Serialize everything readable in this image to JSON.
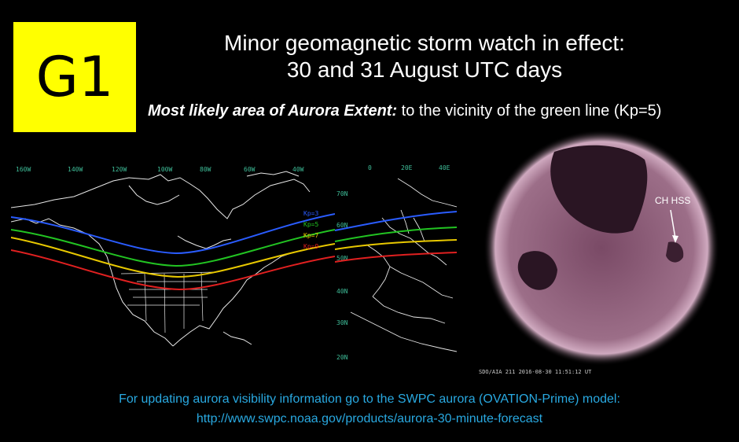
{
  "badge": {
    "label": "G1"
  },
  "title": {
    "line1": "Minor geomagnetic storm watch in effect:",
    "line2": "30 and 31 August UTC days"
  },
  "subtitle": {
    "bold": "Most likely area of Aurora Extent:",
    "rest": " to the vicinity of the green line (Kp=5)"
  },
  "map": {
    "longitude_ticks": [
      "160W",
      "140W",
      "120W",
      "100W",
      "80W",
      "60W",
      "40W"
    ],
    "europe_longitude_ticks": [
      "0",
      "20E",
      "40E"
    ],
    "latitude_ticks": [
      "70N",
      "60N",
      "50N",
      "40N",
      "30N",
      "20N"
    ],
    "lines": [
      {
        "label": "Kp=3",
        "color": "#2a5cff"
      },
      {
        "label": "Kp=5",
        "color": "#22c422"
      },
      {
        "label": "Kp=7",
        "color": "#e8c800"
      },
      {
        "label": "Kp=9",
        "color": "#e02020"
      }
    ]
  },
  "sun": {
    "annotation": "CH HSS",
    "caption": "SDO/AIA  211    2016-08-30 11:51:12 UT"
  },
  "footer": {
    "line1": "For updating aurora visibility information go to the SWPC aurora (OVATION-Prime) model:",
    "line2": "http://www.swpc.noaa.gov/products/aurora-30-minute-forecast"
  }
}
